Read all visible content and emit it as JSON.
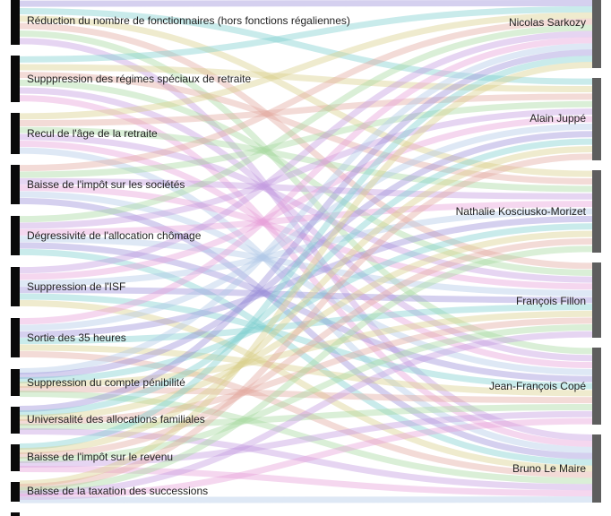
{
  "left_nodes": [
    {
      "label": "Réduction du nombre de fonctionnaires (hors fonctions régaliennes)"
    },
    {
      "label": "Supppression des régimes spéciaux de retraite"
    },
    {
      "label": "Recul de l'âge de la retraite"
    },
    {
      "label": "Baisse de l'impôt sur les sociétés"
    },
    {
      "label": "Dégressivité de l'allocation chômage"
    },
    {
      "label": "Suppression de l'ISF"
    },
    {
      "label": "Sortie des 35 heures"
    },
    {
      "label": "Suppression du compte pénibilité"
    },
    {
      "label": "Universalité des allocations familiales"
    },
    {
      "label": "Baisse de l'impôt sur le revenu"
    },
    {
      "label": "Baisse de la taxation des successions"
    }
  ],
  "right_nodes": [
    {
      "label": "Nicolas Sarkozy"
    },
    {
      "label": "Alain Juppé"
    },
    {
      "label": "Nathalie Kosciusko-Morizet"
    },
    {
      "label": "François Fillon"
    },
    {
      "label": "Jean-François Copé"
    },
    {
      "label": "Bruno Le Maire"
    }
  ],
  "colors": {
    "link_palette": [
      "#9b8fd8",
      "#7fcfcf",
      "#d8cf8a",
      "#e3a9a0",
      "#a6d8a0",
      "#c49be0",
      "#e6a0d8",
      "#b0c8e8"
    ],
    "left_node": "#0a0a0a",
    "right_node": "#5e5e5e"
  }
}
